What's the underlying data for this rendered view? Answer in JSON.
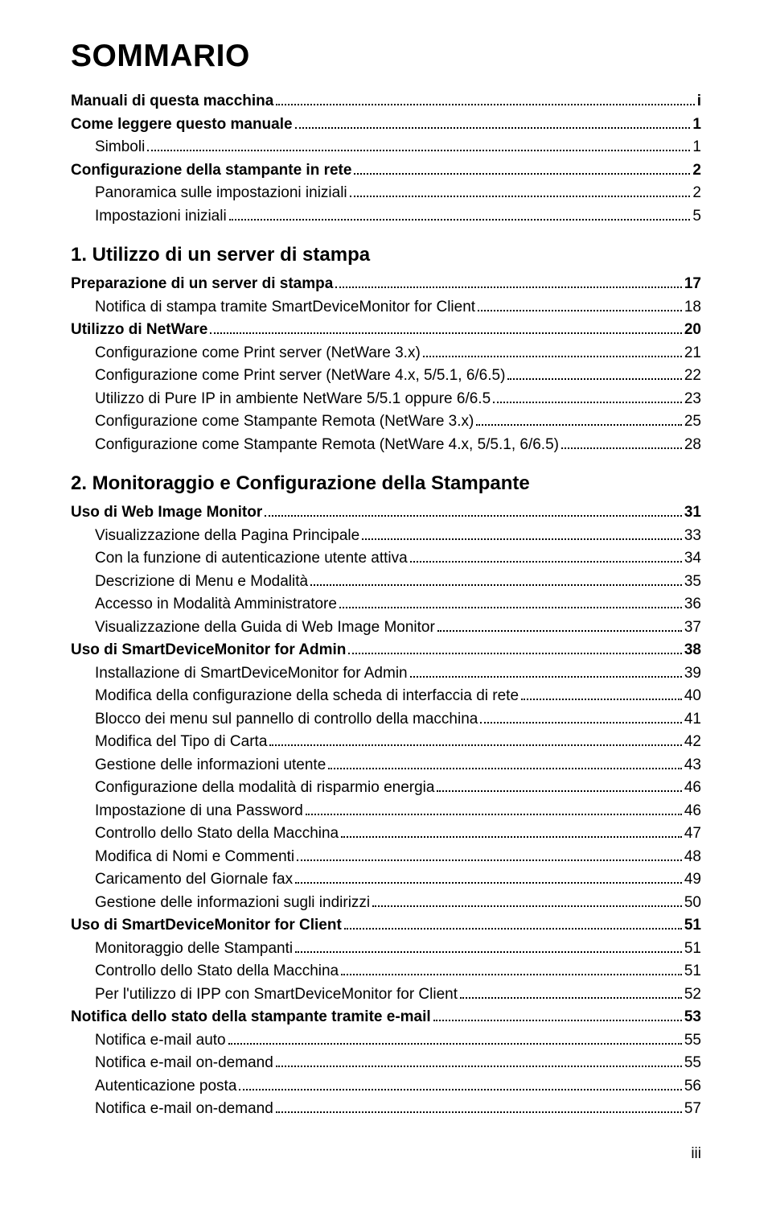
{
  "title": "SOMMARIO",
  "footer": "iii",
  "intro": [
    {
      "label": "Manuali di questa macchina",
      "page": "i",
      "bold": true,
      "indent": false
    },
    {
      "label": "Come leggere questo manuale",
      "page": "1",
      "bold": true,
      "indent": false
    },
    {
      "label": "Simboli",
      "page": "1",
      "bold": false,
      "indent": true
    },
    {
      "label": "Configurazione della stampante in rete",
      "page": "2",
      "bold": true,
      "indent": false
    },
    {
      "label": "Panoramica sulle impostazioni iniziali",
      "page": "2",
      "bold": false,
      "indent": true
    },
    {
      "label": "Impostazioni iniziali",
      "page": "5",
      "bold": false,
      "indent": true
    }
  ],
  "section1": {
    "heading": "1. Utilizzo di un server di stampa",
    "items": [
      {
        "label": "Preparazione di un server di stampa",
        "page": "17",
        "bold": true,
        "indent": false
      },
      {
        "label": "Notifica di stampa tramite SmartDeviceMonitor for Client",
        "page": "18",
        "bold": false,
        "indent": true
      },
      {
        "label": "Utilizzo di NetWare",
        "page": "20",
        "bold": true,
        "indent": false
      },
      {
        "label": "Configurazione come Print server (NetWare 3.x)",
        "page": "21",
        "bold": false,
        "indent": true
      },
      {
        "label": "Configurazione come Print server (NetWare 4.x, 5/5.1, 6/6.5)",
        "page": "22",
        "bold": false,
        "indent": true
      },
      {
        "label": "Utilizzo di Pure IP in ambiente NetWare 5/5.1 oppure 6/6.5",
        "page": "23",
        "bold": false,
        "indent": true
      },
      {
        "label": "Configurazione come Stampante Remota (NetWare 3.x)",
        "page": "25",
        "bold": false,
        "indent": true
      },
      {
        "label": "Configurazione come Stampante Remota (NetWare 4.x, 5/5.1, 6/6.5)",
        "page": "28",
        "bold": false,
        "indent": true
      }
    ]
  },
  "section2": {
    "heading": "2. Monitoraggio e Configurazione della Stampante",
    "items": [
      {
        "label": "Uso di Web Image Monitor",
        "page": "31",
        "bold": true,
        "indent": false
      },
      {
        "label": "Visualizzazione della Pagina Principale",
        "page": "33",
        "bold": false,
        "indent": true
      },
      {
        "label": "Con la funzione di autenticazione utente attiva",
        "page": "34",
        "bold": false,
        "indent": true
      },
      {
        "label": "Descrizione di Menu e Modalità",
        "page": "35",
        "bold": false,
        "indent": true
      },
      {
        "label": "Accesso in Modalità Amministratore",
        "page": "36",
        "bold": false,
        "indent": true
      },
      {
        "label": "Visualizzazione della Guida di Web Image Monitor",
        "page": "37",
        "bold": false,
        "indent": true
      },
      {
        "label": "Uso di SmartDeviceMonitor for Admin",
        "page": "38",
        "bold": true,
        "indent": false
      },
      {
        "label": "Installazione di SmartDeviceMonitor for Admin",
        "page": "39",
        "bold": false,
        "indent": true
      },
      {
        "label": "Modifica della configurazione della scheda di interfaccia di rete",
        "page": "40",
        "bold": false,
        "indent": true
      },
      {
        "label": "Blocco dei menu sul pannello di controllo della macchina",
        "page": "41",
        "bold": false,
        "indent": true
      },
      {
        "label": "Modifica del Tipo di Carta",
        "page": "42",
        "bold": false,
        "indent": true
      },
      {
        "label": "Gestione delle informazioni utente",
        "page": "43",
        "bold": false,
        "indent": true
      },
      {
        "label": "Configurazione della modalità di risparmio energia",
        "page": "46",
        "bold": false,
        "indent": true
      },
      {
        "label": "Impostazione di una Password",
        "page": "46",
        "bold": false,
        "indent": true
      },
      {
        "label": "Controllo dello Stato della Macchina",
        "page": "47",
        "bold": false,
        "indent": true
      },
      {
        "label": "Modifica di Nomi e Commenti",
        "page": "48",
        "bold": false,
        "indent": true
      },
      {
        "label": "Caricamento del Giornale fax",
        "page": "49",
        "bold": false,
        "indent": true
      },
      {
        "label": "Gestione delle informazioni sugli indirizzi",
        "page": "50",
        "bold": false,
        "indent": true
      },
      {
        "label": "Uso di SmartDeviceMonitor for Client",
        "page": "51",
        "bold": true,
        "indent": false
      },
      {
        "label": "Monitoraggio delle Stampanti",
        "page": "51",
        "bold": false,
        "indent": true
      },
      {
        "label": "Controllo dello Stato della Macchina",
        "page": "51",
        "bold": false,
        "indent": true
      },
      {
        "label": "Per l'utilizzo di IPP con SmartDeviceMonitor for Client",
        "page": "52",
        "bold": false,
        "indent": true
      },
      {
        "label": "Notifica dello stato della stampante tramite e-mail",
        "page": "53",
        "bold": true,
        "indent": false
      },
      {
        "label": "Notifica e-mail auto",
        "page": "55",
        "bold": false,
        "indent": true
      },
      {
        "label": "Notifica e-mail on-demand",
        "page": "55",
        "bold": false,
        "indent": true
      },
      {
        "label": "Autenticazione posta",
        "page": "56",
        "bold": false,
        "indent": true
      },
      {
        "label": "Notifica e-mail on-demand",
        "page": "57",
        "bold": false,
        "indent": true
      }
    ]
  }
}
